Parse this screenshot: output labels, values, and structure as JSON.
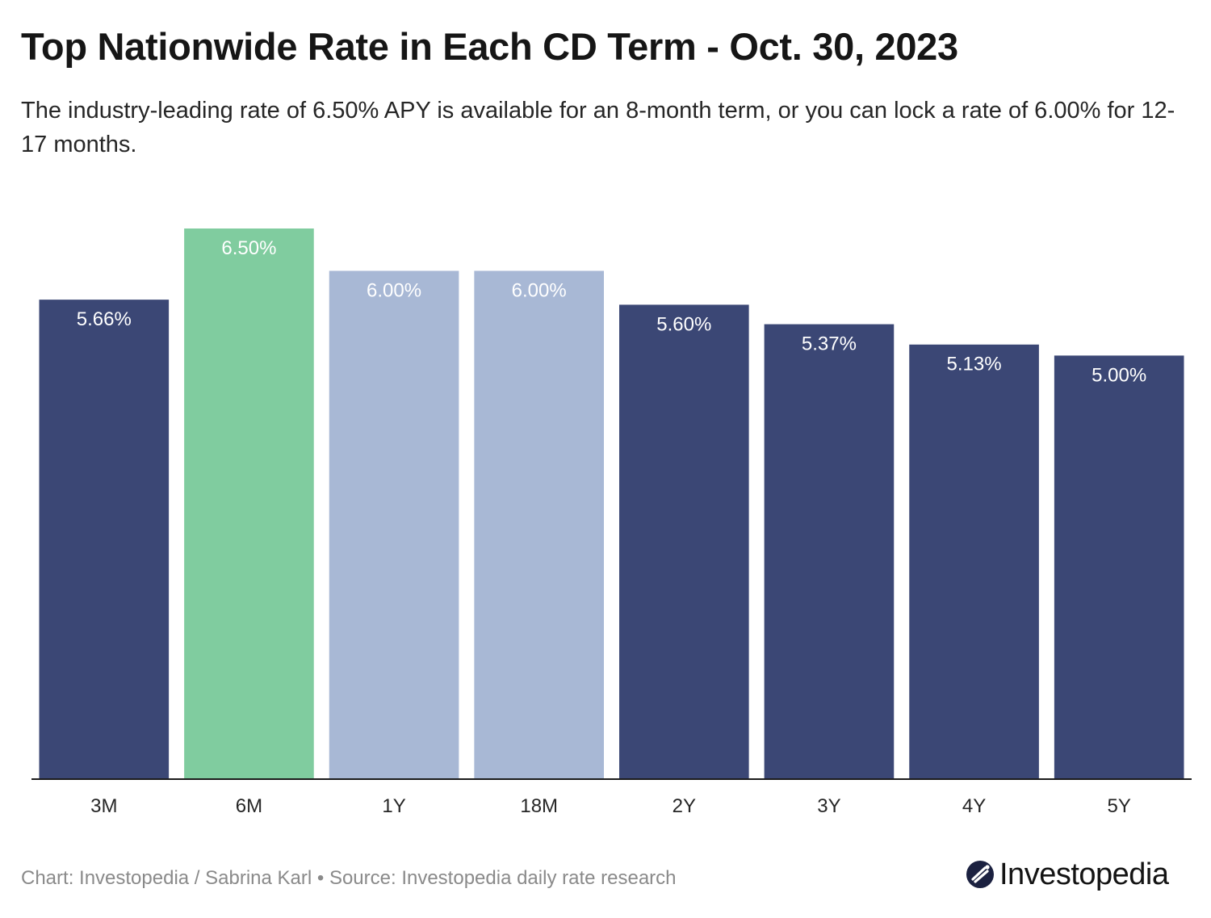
{
  "chart_data": {
    "type": "bar",
    "title": "Top Nationwide Rate in Each CD Term - Oct. 30, 2023",
    "subtitle": "The industry-leading rate of 6.50% APY is available for an 8-month term, or you can lock a rate of 6.00% for 12-17 months.",
    "categories": [
      "3M",
      "6M",
      "1Y",
      "18M",
      "2Y",
      "3Y",
      "4Y",
      "5Y"
    ],
    "values": [
      5.66,
      6.5,
      6.0,
      6.0,
      5.6,
      5.37,
      5.13,
      5.0
    ],
    "value_labels": [
      "5.66%",
      "6.50%",
      "6.00%",
      "6.00%",
      "5.60%",
      "5.37%",
      "5.13%",
      "5.00%"
    ],
    "bar_colors": [
      "#3b4775",
      "#80cc9f",
      "#a8b8d5",
      "#a8b8d5",
      "#3b4775",
      "#3b4775",
      "#3b4775",
      "#3b4775"
    ],
    "xlabel": "",
    "ylabel": "",
    "ylim": [
      0,
      6.5
    ],
    "grid": false,
    "legend": "none"
  },
  "footer": {
    "credit": "Chart: Investopedia / Sabrina Karl • Source: Investopedia daily rate research"
  },
  "logo": {
    "text": "Investopedia",
    "icon": "investopedia-logo-icon"
  },
  "colors": {
    "axis": "#1b1b1b",
    "label_light": "#ffffff",
    "tick_text": "#262626"
  }
}
